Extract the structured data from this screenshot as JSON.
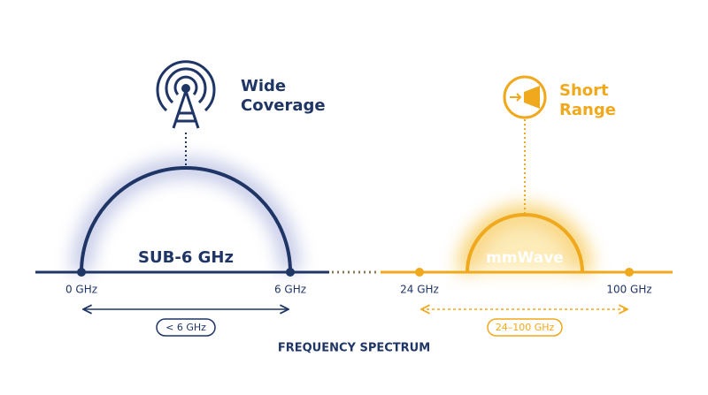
{
  "left": {
    "label_lines": [
      "Wide",
      "Coverage"
    ],
    "band": "SUB-6 GHz",
    "start": "0 GHz",
    "end": "6 GHz",
    "range": "< 6 GHz"
  },
  "right": {
    "label_lines": [
      "Short",
      "Range"
    ],
    "band": "mmWave",
    "start": "24 GHz",
    "end": "100 GHz",
    "range": "24–100 GHz"
  },
  "axis_title": "FREQUENCY SPECTRUM"
}
